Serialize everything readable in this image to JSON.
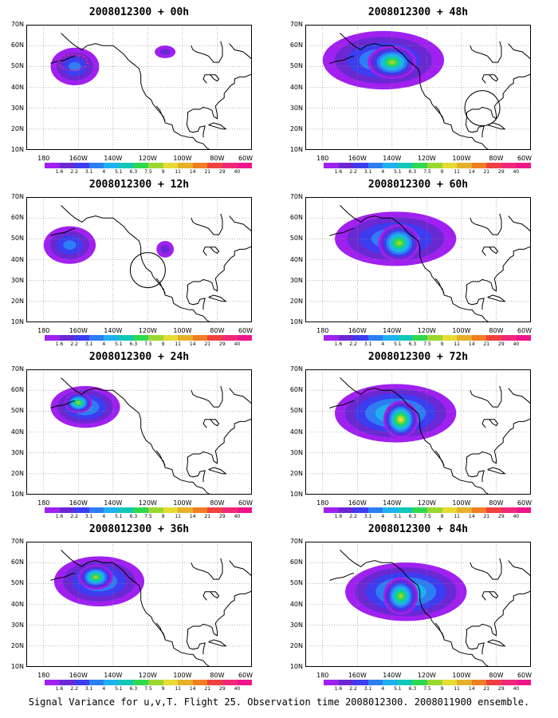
{
  "panels": [
    {
      "title": "2008012300 + 00h",
      "blobs": [
        [
          -162,
          50,
          14,
          9,
          3
        ],
        [
          -110,
          57,
          6,
          3,
          1
        ]
      ],
      "markers": [
        {
          "type": "dotted-ellipse",
          "lon": -163,
          "lat": 52
        }
      ]
    },
    {
      "title": "2008012300 + 48h",
      "blobs": [
        [
          -145,
          53,
          35,
          14,
          4
        ],
        [
          -140,
          52,
          14,
          8,
          7
        ]
      ],
      "markers": [
        {
          "type": "circle",
          "lon": -88,
          "lat": 30
        }
      ]
    },
    {
      "title": "2008012300 + 12h",
      "blobs": [
        [
          -165,
          47,
          15,
          9,
          3
        ],
        [
          -110,
          45,
          5,
          4,
          1
        ]
      ],
      "markers": [
        {
          "type": "circle",
          "lon": -120,
          "lat": 35
        }
      ]
    },
    {
      "title": "2008012300 + 60h",
      "blobs": [
        [
          -138,
          50,
          35,
          13,
          4
        ],
        [
          -136,
          48,
          12,
          9,
          7
        ]
      ],
      "markers": []
    },
    {
      "title": "2008012300 + 24h",
      "blobs": [
        [
          -156,
          52,
          20,
          10,
          4
        ],
        [
          -160,
          54,
          8,
          5,
          7
        ]
      ],
      "markers": []
    },
    {
      "title": "2008012300 + 72h",
      "blobs": [
        [
          -138,
          49,
          35,
          14,
          5
        ],
        [
          -135,
          46,
          10,
          9,
          8
        ]
      ],
      "markers": []
    },
    {
      "title": "2008012300 + 36h",
      "blobs": [
        [
          -148,
          51,
          26,
          12,
          4
        ],
        [
          -150,
          53,
          10,
          6,
          7
        ]
      ],
      "markers": []
    },
    {
      "title": "2008012300 + 84h",
      "blobs": [
        [
          -132,
          46,
          35,
          14,
          5
        ],
        [
          -135,
          44,
          10,
          9,
          7
        ]
      ],
      "markers": []
    }
  ],
  "map": {
    "lon_range": [
      -190,
      -60
    ],
    "lat_range": [
      10,
      70
    ],
    "lat_labels": [
      "10N",
      "20N",
      "30N",
      "40N",
      "50N",
      "60N",
      "70N"
    ],
    "lon_labels": [
      "180",
      "160W",
      "140W",
      "120W",
      "100W",
      "80W",
      "60W"
    ]
  },
  "colorbar": {
    "levels": [
      "1.6",
      "2.2",
      "3.1",
      "4",
      "5.1",
      "6.3",
      "7.5",
      "9",
      "11",
      "14",
      "21",
      "29",
      "40"
    ],
    "colors": [
      "#a020f0",
      "#6a28d2",
      "#3c3cf0",
      "#2c7ef2",
      "#1fb0f0",
      "#10c8b8",
      "#30d850",
      "#9ad830",
      "#e6dc32",
      "#e6b02a",
      "#f07e22",
      "#f04040",
      "#f02878",
      "#f0148c"
    ]
  },
  "caption": "Signal Variance for u,v,T. Flight 25. Observation time 2008012300. 2008011900 ensemble."
}
